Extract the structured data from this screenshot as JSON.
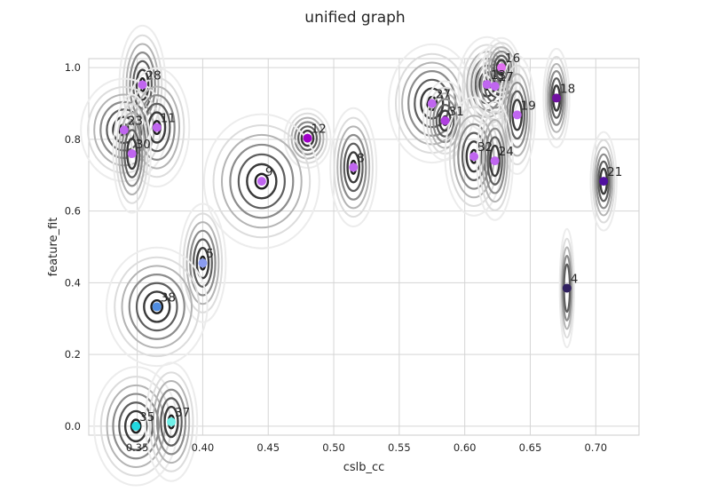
{
  "chart_data": {
    "type": "scatter",
    "title": "unified graph",
    "xlabel": "cslb_cc",
    "ylabel": "feature_fit",
    "xlim": [
      0.313,
      0.733
    ],
    "ylim": [
      -0.025,
      1.025
    ],
    "grid": true,
    "x_ticks": [
      "0.35",
      "0.40",
      "0.45",
      "0.50",
      "0.55",
      "0.60",
      "0.65",
      "0.70"
    ],
    "y_ticks": [
      "0.0",
      "0.2",
      "0.4",
      "0.6",
      "0.8",
      "1.0"
    ],
    "points": [
      {
        "label": "28",
        "x": 0.354,
        "y": 0.952,
        "color": "#c066f0",
        "sx": 0.0032,
        "sy": 0.03
      },
      {
        "label": "23",
        "x": 0.34,
        "y": 0.826,
        "color": "#c066f0",
        "sx": 0.006,
        "sy": 0.026
      },
      {
        "label": "11",
        "x": 0.365,
        "y": 0.833,
        "color": "#c066f0",
        "sx": 0.0045,
        "sy": 0.03
      },
      {
        "label": "30",
        "x": 0.346,
        "y": 0.76,
        "color": "#c066f0",
        "sx": 0.0026,
        "sy": 0.03
      },
      {
        "label": "12",
        "x": 0.48,
        "y": 0.803,
        "color": "#a000c8",
        "sx": 0.0032,
        "sy": 0.015
      },
      {
        "label": "9",
        "x": 0.445,
        "y": 0.683,
        "color": "#c066f0",
        "sx": 0.008,
        "sy": 0.034
      },
      {
        "label": "8",
        "x": 0.515,
        "y": 0.722,
        "color": "#c066f0",
        "sx": 0.0032,
        "sy": 0.03
      },
      {
        "label": "5",
        "x": 0.4,
        "y": 0.455,
        "color": "#8a9cf0",
        "sx": 0.0032,
        "sy": 0.03
      },
      {
        "label": "38",
        "x": 0.365,
        "y": 0.333,
        "color": "#4f8ce0",
        "sx": 0.007,
        "sy": 0.03
      },
      {
        "label": "35",
        "x": 0.349,
        "y": 0.0,
        "color": "#20d8e0",
        "sx": 0.0058,
        "sy": 0.03
      },
      {
        "label": "37",
        "x": 0.376,
        "y": 0.012,
        "color": "#70f0e8",
        "sx": 0.0036,
        "sy": 0.03
      },
      {
        "label": "27",
        "x": 0.575,
        "y": 0.9,
        "color": "#c066f0",
        "sx": 0.006,
        "sy": 0.03
      },
      {
        "label": "31",
        "x": 0.585,
        "y": 0.852,
        "color": "#b040e0",
        "sx": 0.003,
        "sy": 0.02
      },
      {
        "label": "13",
        "x": 0.617,
        "y": 0.953,
        "color": "#c066f0",
        "sx": 0.004,
        "sy": 0.024
      },
      {
        "label": "17",
        "x": 0.623,
        "y": 0.948,
        "color": "#c066f0",
        "sx": 0.0035,
        "sy": 0.02
      },
      {
        "label": "16",
        "x": 0.628,
        "y": 1.0,
        "color": "#e070f0",
        "sx": 0.0025,
        "sy": 0.015
      },
      {
        "label": "19",
        "x": 0.64,
        "y": 0.868,
        "color": "#c066f0",
        "sx": 0.0025,
        "sy": 0.03
      },
      {
        "label": "18",
        "x": 0.67,
        "y": 0.915,
        "color": "#7010a0",
        "sx": 0.0018,
        "sy": 0.025
      },
      {
        "label": "32",
        "x": 0.607,
        "y": 0.752,
        "color": "#c066f0",
        "sx": 0.004,
        "sy": 0.03
      },
      {
        "label": "24",
        "x": 0.623,
        "y": 0.74,
        "color": "#c066f0",
        "sx": 0.0025,
        "sy": 0.03
      },
      {
        "label": "21",
        "x": 0.706,
        "y": 0.683,
        "color": "#5010a0",
        "sx": 0.0018,
        "sy": 0.025
      },
      {
        "label": "4",
        "x": 0.678,
        "y": 0.385,
        "color": "#302060",
        "sx": 0.001,
        "sy": 0.03
      }
    ]
  }
}
